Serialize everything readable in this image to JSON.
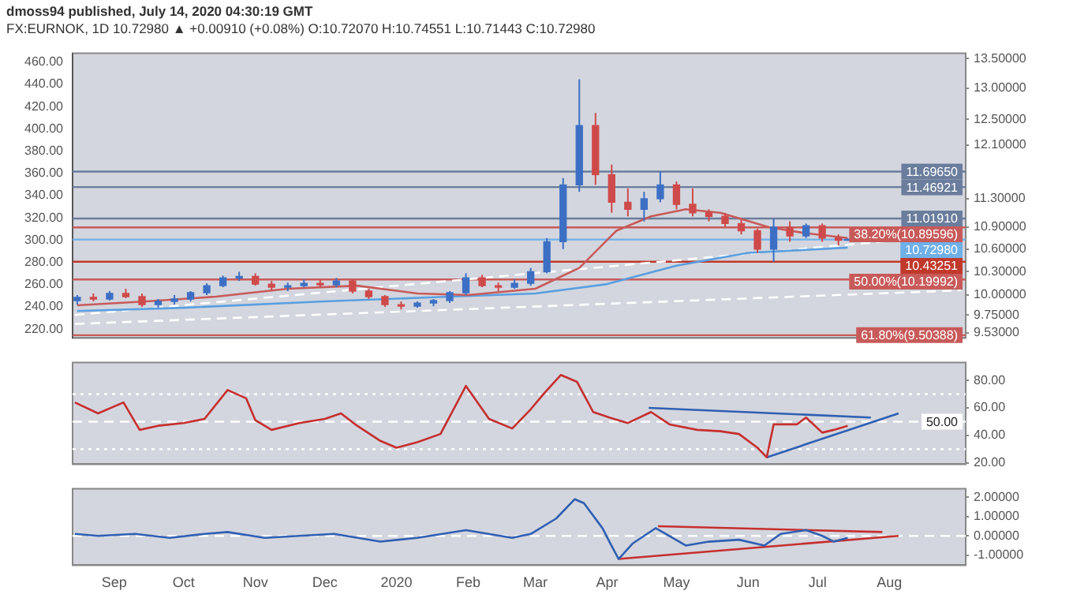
{
  "chart_data": [
    {
      "type": "candlestick",
      "title": "dmoss94 published, July 14, 2020 04:30:19 GMT",
      "subtitle": "FX:EURNOK, 1D 10.72980 ▲ +0.00910 (+0.08%) O:10.72070 H:10.74551 L:10.71443 C:10.72980",
      "x": [
        "2019-08-16",
        "2019-08-23",
        "2019-08-30",
        "2019-09-06",
        "2019-09-13",
        "2019-09-20",
        "2019-09-27",
        "2019-10-04",
        "2019-10-11",
        "2019-10-18",
        "2019-10-25",
        "2019-11-01",
        "2019-11-08",
        "2019-11-15",
        "2019-11-22",
        "2019-11-29",
        "2019-12-06",
        "2019-12-13",
        "2019-12-20",
        "2019-12-27",
        "2020-01-03",
        "2020-01-10",
        "2020-01-17",
        "2020-01-24",
        "2020-01-31",
        "2020-02-07",
        "2020-02-14",
        "2020-02-21",
        "2020-02-28",
        "2020-03-06",
        "2020-03-13",
        "2020-03-20",
        "2020-03-27",
        "2020-04-03",
        "2020-04-10",
        "2020-04-17",
        "2020-04-24",
        "2020-05-01",
        "2020-05-08",
        "2020-05-15",
        "2020-05-22",
        "2020-05-29",
        "2020-06-05",
        "2020-06-12",
        "2020-06-19",
        "2020-06-26",
        "2020-07-03",
        "2020-07-10",
        "2020-07-14"
      ],
      "ohlc": [
        [
          9.93,
          10.0,
          9.88,
          9.97
        ],
        [
          9.97,
          10.02,
          9.92,
          9.95
        ],
        [
          9.95,
          10.05,
          9.93,
          10.02
        ],
        [
          10.02,
          10.08,
          9.96,
          9.98
        ],
        [
          9.98,
          10.02,
          9.85,
          9.88
        ],
        [
          9.88,
          9.95,
          9.84,
          9.92
        ],
        [
          9.92,
          10.0,
          9.88,
          9.95
        ],
        [
          9.95,
          10.05,
          9.92,
          10.03
        ],
        [
          10.03,
          10.15,
          10.0,
          10.12
        ],
        [
          10.12,
          10.25,
          10.1,
          10.22
        ],
        [
          10.22,
          10.3,
          10.18,
          10.24
        ],
        [
          10.24,
          10.28,
          10.12,
          10.14
        ],
        [
          10.14,
          10.18,
          10.06,
          10.1
        ],
        [
          10.1,
          10.16,
          10.05,
          10.12
        ],
        [
          10.12,
          10.2,
          10.1,
          10.15
        ],
        [
          10.15,
          10.2,
          10.1,
          10.13
        ],
        [
          10.13,
          10.22,
          10.1,
          10.18
        ],
        [
          10.18,
          10.2,
          10.02,
          10.05
        ],
        [
          10.05,
          10.08,
          9.95,
          9.98
        ],
        [
          9.98,
          10.0,
          9.85,
          9.88
        ],
        [
          9.88,
          9.92,
          9.82,
          9.86
        ],
        [
          9.86,
          9.92,
          9.84,
          9.9
        ],
        [
          9.9,
          9.95,
          9.86,
          9.93
        ],
        [
          9.93,
          10.05,
          9.9,
          10.03
        ],
        [
          10.03,
          10.28,
          10.0,
          10.22
        ],
        [
          10.22,
          10.26,
          10.1,
          10.12
        ],
        [
          10.12,
          10.16,
          10.05,
          10.1
        ],
        [
          10.1,
          10.2,
          10.08,
          10.15
        ],
        [
          10.15,
          10.35,
          10.12,
          10.3
        ],
        [
          10.3,
          10.75,
          10.28,
          10.7
        ],
        [
          10.7,
          11.6,
          10.6,
          11.5
        ],
        [
          11.5,
          13.15,
          11.4,
          12.4
        ],
        [
          12.4,
          12.6,
          11.5,
          11.65
        ],
        [
          11.65,
          11.8,
          11.1,
          11.25
        ],
        [
          11.25,
          11.45,
          11.05,
          11.15
        ],
        [
          11.15,
          11.4,
          10.98,
          11.3
        ],
        [
          11.3,
          11.7,
          11.25,
          11.5
        ],
        [
          11.5,
          11.55,
          11.15,
          11.22
        ],
        [
          11.22,
          11.45,
          11.05,
          11.1
        ],
        [
          11.1,
          11.15,
          10.98,
          11.05
        ],
        [
          11.05,
          11.1,
          10.9,
          10.95
        ],
        [
          10.95,
          11.0,
          10.8,
          10.85
        ],
        [
          10.85,
          10.88,
          10.55,
          10.6
        ],
        [
          10.6,
          11.02,
          10.43,
          10.9
        ],
        [
          10.9,
          10.98,
          10.7,
          10.78
        ],
        [
          10.78,
          10.95,
          10.75,
          10.92
        ],
        [
          10.92,
          10.95,
          10.7,
          10.75
        ],
        [
          10.75,
          10.8,
          10.65,
          10.72
        ],
        [
          10.7207,
          10.74551,
          10.71443,
          10.7298
        ]
      ],
      "colors": [
        "#3d6fc4",
        "#cf4a4a",
        "#3d6fc4",
        "#cf4a4a",
        "#cf4a4a",
        "#3d6fc4",
        "#3d6fc4",
        "#3d6fc4",
        "#3d6fc4",
        "#3d6fc4",
        "#3d6fc4",
        "#cf4a4a",
        "#cf4a4a",
        "#3d6fc4",
        "#3d6fc4",
        "#cf4a4a",
        "#3d6fc4",
        "#cf4a4a",
        "#cf4a4a",
        "#cf4a4a",
        "#cf4a4a",
        "#3d6fc4",
        "#3d6fc4",
        "#3d6fc4",
        "#3d6fc4",
        "#cf4a4a",
        "#cf4a4a",
        "#3d6fc4",
        "#3d6fc4",
        "#3d6fc4",
        "#3d6fc4",
        "#3d6fc4",
        "#cf4a4a",
        "#cf4a4a",
        "#cf4a4a",
        "#3d6fc4",
        "#3d6fc4",
        "#cf4a4a",
        "#cf4a4a",
        "#cf4a4a",
        "#cf4a4a",
        "#cf4a4a",
        "#cf4a4a",
        "#3d6fc4",
        "#cf4a4a",
        "#3d6fc4",
        "#cf4a4a",
        "#cf4a4a",
        "#3d6fc4"
      ],
      "series": [
        {
          "type": "line",
          "color": "#c85a5a",
          "line_style": "solid",
          "x": [
            "2019-08-16",
            "2019-09-15",
            "2019-10-15",
            "2019-11-15",
            "2019-12-15",
            "2020-01-10",
            "2020-02-01",
            "2020-03-01",
            "2020-03-20",
            "2020-04-05",
            "2020-04-20",
            "2020-05-05",
            "2020-05-20",
            "2020-06-10",
            "2020-06-25",
            "2020-07-14"
          ],
          "values": [
            9.87,
            9.92,
            9.98,
            10.08,
            10.12,
            10.02,
            10.0,
            10.08,
            10.35,
            10.85,
            11.05,
            11.15,
            11.1,
            10.9,
            10.82,
            10.75
          ]
        },
        {
          "type": "line",
          "color": "#5a9fe0",
          "line_style": "solid",
          "x": [
            "2019-08-16",
            "2019-10-01",
            "2019-12-01",
            "2020-01-15",
            "2020-03-01",
            "2020-04-01",
            "2020-05-01",
            "2020-06-01",
            "2020-07-14"
          ],
          "values": [
            9.8,
            9.84,
            9.92,
            9.97,
            10.02,
            10.14,
            10.38,
            10.55,
            10.62
          ]
        },
        {
          "type": "line",
          "color": "#ffffff",
          "line_style": "dashed",
          "x": [
            "2019-08-15",
            "2020-09-01"
          ],
          "values": [
            9.64,
            10.06
          ]
        },
        {
          "type": "line",
          "color": "#ffffff",
          "line_style": "dashed",
          "x": [
            "2019-08-15",
            "2020-09-01"
          ],
          "values": [
            9.75,
            10.8
          ]
        }
      ],
      "ref_lines": [
        {
          "axis": "y",
          "value": 11.6965,
          "label": "11.69650",
          "color": "#6a7d9c"
        },
        {
          "axis": "y",
          "value": 11.46921,
          "label": "11.46921",
          "color": "#6a7d9c"
        },
        {
          "axis": "y",
          "value": 11.0191,
          "label": "11.01910",
          "color": "#6a7d9c"
        },
        {
          "axis": "y",
          "value": 10.89596,
          "label": "38.20%(10.89596)",
          "color": "#c85a5a"
        },
        {
          "axis": "y",
          "value": 10.7298,
          "label": "10.72980",
          "color": "#6fb0e8"
        },
        {
          "axis": "y",
          "value": 10.43251,
          "label": "10.43251",
          "color": "#c0392b"
        },
        {
          "axis": "y",
          "value": 10.19992,
          "label": "50.00%(10.19992)",
          "color": "#c85a5a"
        },
        {
          "axis": "y",
          "value": 9.50388,
          "label": "61.80%(9.50388)",
          "color": "#c85a5a"
        }
      ],
      "log": "y",
      "xlim": [
        "2019-08-14",
        "2020-09-03"
      ],
      "ylim": [
        9.47,
        13.59
      ],
      "yticks": [
        {
          "value": 9.53,
          "label": "9.53000"
        },
        {
          "value": 9.75,
          "label": "9.75000"
        },
        {
          "value": 10,
          "label": "10.00000"
        },
        {
          "value": 10.3,
          "label": "10.30000"
        },
        {
          "value": 10.6,
          "label": "10.60000"
        },
        {
          "value": 10.9,
          "label": "10.90000"
        },
        {
          "value": 11.3,
          "label": "11.30000"
        },
        {
          "value": 12.1,
          "label": "12.10000"
        },
        {
          "value": 12.5,
          "label": "12.50000"
        },
        {
          "value": 13,
          "label": "13.00000"
        },
        {
          "value": 13.5,
          "label": "13.50000"
        }
      ],
      "y2lim": [
        212,
        468
      ],
      "y2ticks": [
        {
          "value": 220,
          "label": "220.00"
        },
        {
          "value": 240,
          "label": "240.00"
        },
        {
          "value": 260,
          "label": "260.00"
        },
        {
          "value": 280,
          "label": "280.00"
        },
        {
          "value": 300,
          "label": "300.00"
        },
        {
          "value": 320,
          "label": "320.00"
        },
        {
          "value": 340,
          "label": "340.00"
        },
        {
          "value": 360,
          "label": "360.00"
        },
        {
          "value": 380,
          "label": "380.00"
        },
        {
          "value": 400,
          "label": "400.00"
        },
        {
          "value": 420,
          "label": "420.00"
        },
        {
          "value": 440,
          "label": "440.00"
        },
        {
          "value": 460,
          "label": "460.00"
        }
      ],
      "tick_labels": "y"
    },
    {
      "type": "line",
      "color": "#c62f2f",
      "x": [
        "2019-08-15",
        "2019-08-25",
        "2019-09-05",
        "2019-09-12",
        "2019-09-20",
        "2019-10-01",
        "2019-10-10",
        "2019-10-20",
        "2019-10-28",
        "2019-11-01",
        "2019-11-08",
        "2019-11-20",
        "2019-12-01",
        "2019-12-08",
        "2019-12-15",
        "2019-12-25",
        "2020-01-01",
        "2020-01-10",
        "2020-01-20",
        "2020-01-31",
        "2020-02-10",
        "2020-02-20",
        "2020-02-28",
        "2020-03-05",
        "2020-03-12",
        "2020-03-19",
        "2020-03-26",
        "2020-04-02",
        "2020-04-10",
        "2020-04-20",
        "2020-04-28",
        "2020-05-10",
        "2020-05-20",
        "2020-05-28",
        "2020-06-05",
        "2020-06-09",
        "2020-06-12",
        "2020-06-22",
        "2020-06-26",
        "2020-07-03",
        "2020-07-08",
        "2020-07-14"
      ],
      "values": [
        64,
        56,
        64,
        44,
        47,
        49,
        52,
        73,
        67,
        51,
        44,
        49,
        52,
        56,
        47,
        36,
        31,
        35,
        41,
        76,
        52,
        45,
        59,
        71,
        84,
        79,
        57,
        53,
        49,
        57,
        48,
        44,
        43,
        41,
        31,
        24,
        48,
        48,
        53,
        42,
        44,
        47
      ],
      "series": [
        {
          "type": "line",
          "color": "#2f5fb3",
          "x": [
            "2020-04-19",
            "2020-07-24"
          ],
          "values": [
            60,
            53
          ]
        },
        {
          "type": "line",
          "color": "#2f5fb3",
          "x": [
            "2020-06-09",
            "2020-08-05"
          ],
          "values": [
            24,
            56
          ]
        }
      ],
      "ref_lines": [
        {
          "axis": "y",
          "value": 70,
          "color": "#ffffff",
          "line_style": "dotted"
        },
        {
          "axis": "y",
          "value": 50,
          "label": "50.00",
          "color": "#ffffff",
          "line_style": "dashed"
        },
        {
          "axis": "y",
          "value": 30,
          "color": "#ffffff",
          "line_style": "dotted"
        }
      ],
      "xlim": [
        "2019-08-14",
        "2020-09-03"
      ],
      "ylim": [
        19,
        93
      ],
      "yticks": [
        {
          "value": 20,
          "label": "20.00"
        },
        {
          "value": 40,
          "label": "40.00"
        },
        {
          "value": 60,
          "label": "60.00"
        },
        {
          "value": 80,
          "label": "80.00"
        }
      ],
      "tick_labels": "y"
    },
    {
      "type": "line",
      "color": "#2f5fb3",
      "x": [
        "2019-08-15",
        "2019-08-25",
        "2019-09-10",
        "2019-09-25",
        "2019-10-10",
        "2019-10-20",
        "2019-11-05",
        "2019-11-20",
        "2019-12-05",
        "2019-12-25",
        "2020-01-10",
        "2020-01-31",
        "2020-02-20",
        "2020-02-28",
        "2020-03-10",
        "2020-03-18",
        "2020-03-22",
        "2020-03-30",
        "2020-04-02",
        "2020-04-06",
        "2020-04-12",
        "2020-04-22",
        "2020-05-05",
        "2020-05-15",
        "2020-05-28",
        "2020-06-08",
        "2020-06-15",
        "2020-06-26",
        "2020-07-03",
        "2020-07-08",
        "2020-07-14"
      ],
      "values": [
        0.1,
        0,
        0.1,
        -0.1,
        0.1,
        0.2,
        -0.1,
        0,
        0.1,
        -0.3,
        -0.1,
        0.3,
        -0.1,
        0.1,
        0.9,
        1.9,
        1.7,
        0.4,
        -0.3,
        -1.2,
        -0.4,
        0.4,
        -0.5,
        -0.3,
        -0.2,
        -0.5,
        0.1,
        0.3,
        0,
        -0.3,
        -0.1
      ],
      "series": [
        {
          "type": "line",
          "color": "#c62f2f",
          "x": [
            "2020-04-23",
            "2020-07-29"
          ],
          "values": [
            0.5,
            0.2
          ]
        },
        {
          "type": "line",
          "color": "#c62f2f",
          "x": [
            "2020-04-06",
            "2020-08-05"
          ],
          "values": [
            -1.2,
            0
          ]
        }
      ],
      "ref_lines": [
        {
          "axis": "y",
          "value": 0,
          "color": "#ffffff",
          "line_style": "dashed"
        }
      ],
      "xlim": [
        "2019-08-14",
        "2020-09-03"
      ],
      "ylim": [
        -1.52,
        2.44
      ],
      "yticks": [
        {
          "value": -1,
          "label": "-1.00000"
        },
        {
          "value": 0,
          "label": "0.00000"
        },
        {
          "value": 1,
          "label": "1.00000"
        },
        {
          "value": 2,
          "label": "2.00000"
        }
      ],
      "xticks": [
        {
          "value": "2019-09-01",
          "label": "Sep"
        },
        {
          "value": "2019-10-01",
          "label": "Oct"
        },
        {
          "value": "2019-11-01",
          "label": "Nov"
        },
        {
          "value": "2019-12-01",
          "label": "Dec"
        },
        {
          "value": "2020-01-01",
          "label": "2020"
        },
        {
          "value": "2020-02-01",
          "label": "Feb"
        },
        {
          "value": "2020-03-01",
          "label": "Mar"
        },
        {
          "value": "2020-04-01",
          "label": "Apr"
        },
        {
          "value": "2020-05-01",
          "label": "May"
        },
        {
          "value": "2020-06-01",
          "label": "Jun"
        },
        {
          "value": "2020-07-01",
          "label": "Jul"
        },
        {
          "value": "2020-08-01",
          "label": "Aug"
        }
      ]
    }
  ]
}
